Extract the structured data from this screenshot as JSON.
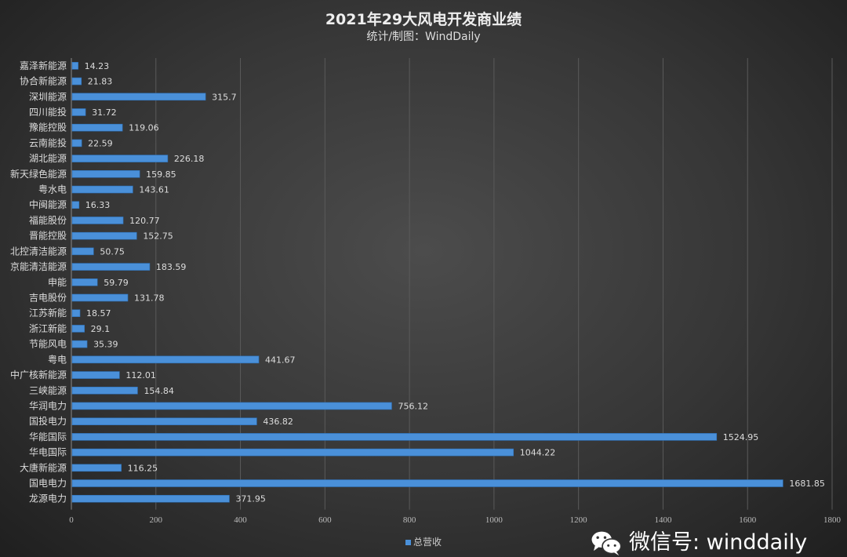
{
  "chart_data": {
    "type": "bar",
    "orientation": "horizontal",
    "title": "2021年29大风电开发商业绩",
    "subtitle": "统计/制图：WindDaily",
    "categories": [
      "嘉泽新能源",
      "协合新能源",
      "深圳能源",
      "四川能投",
      "豫能控股",
      "云南能投",
      "湖北能源",
      "新天绿色能源",
      "粤水电",
      "中闽能源",
      "福能股份",
      "晋能控股",
      "北控清洁能源",
      "京能清洁能源",
      "申能",
      "吉电股份",
      "江苏新能",
      "浙江新能",
      "节能风电",
      "粤电",
      "中广核新能源",
      "三峡能源",
      "华润电力",
      "国投电力",
      "华能国际",
      "华电国际",
      "大唐新能源",
      "国电电力",
      "龙源电力"
    ],
    "series": [
      {
        "name": "总营收",
        "values": [
          14.23,
          21.83,
          315.7,
          31.72,
          119.06,
          22.59,
          226.18,
          159.85,
          143.61,
          16.33,
          120.77,
          152.75,
          50.75,
          183.59,
          59.79,
          131.78,
          18.57,
          29.1,
          35.39,
          441.67,
          112.01,
          154.84,
          756.12,
          436.82,
          1524.95,
          1044.22,
          116.25,
          1681.85,
          371.95
        ]
      }
    ],
    "data_labels": [
      "14.23",
      "21.83",
      "315.7",
      "31.72",
      "119.06",
      "22.59",
      "226.18",
      "159.85",
      "143.61",
      "16.33",
      "120.77",
      "152.75",
      "50.75",
      "183.59",
      "59.79",
      "131.78",
      "18.57",
      "29.1",
      "35.39",
      "441.67",
      "112.01",
      "154.84",
      "756.12",
      "436.82",
      "1524.95",
      "1044.22",
      "116.25",
      "1681.85",
      "371.95"
    ],
    "xticks": [
      "0",
      "200",
      "400",
      "600",
      "800",
      "1000",
      "1200",
      "1400",
      "1600",
      "1800"
    ],
    "xlim": [
      0,
      1800
    ],
    "grid": "vertical",
    "legend_position": "bottom",
    "bar_color": "#4a90d9"
  },
  "watermark": {
    "icon": "wechat-icon",
    "text": "微信号: winddaily"
  }
}
